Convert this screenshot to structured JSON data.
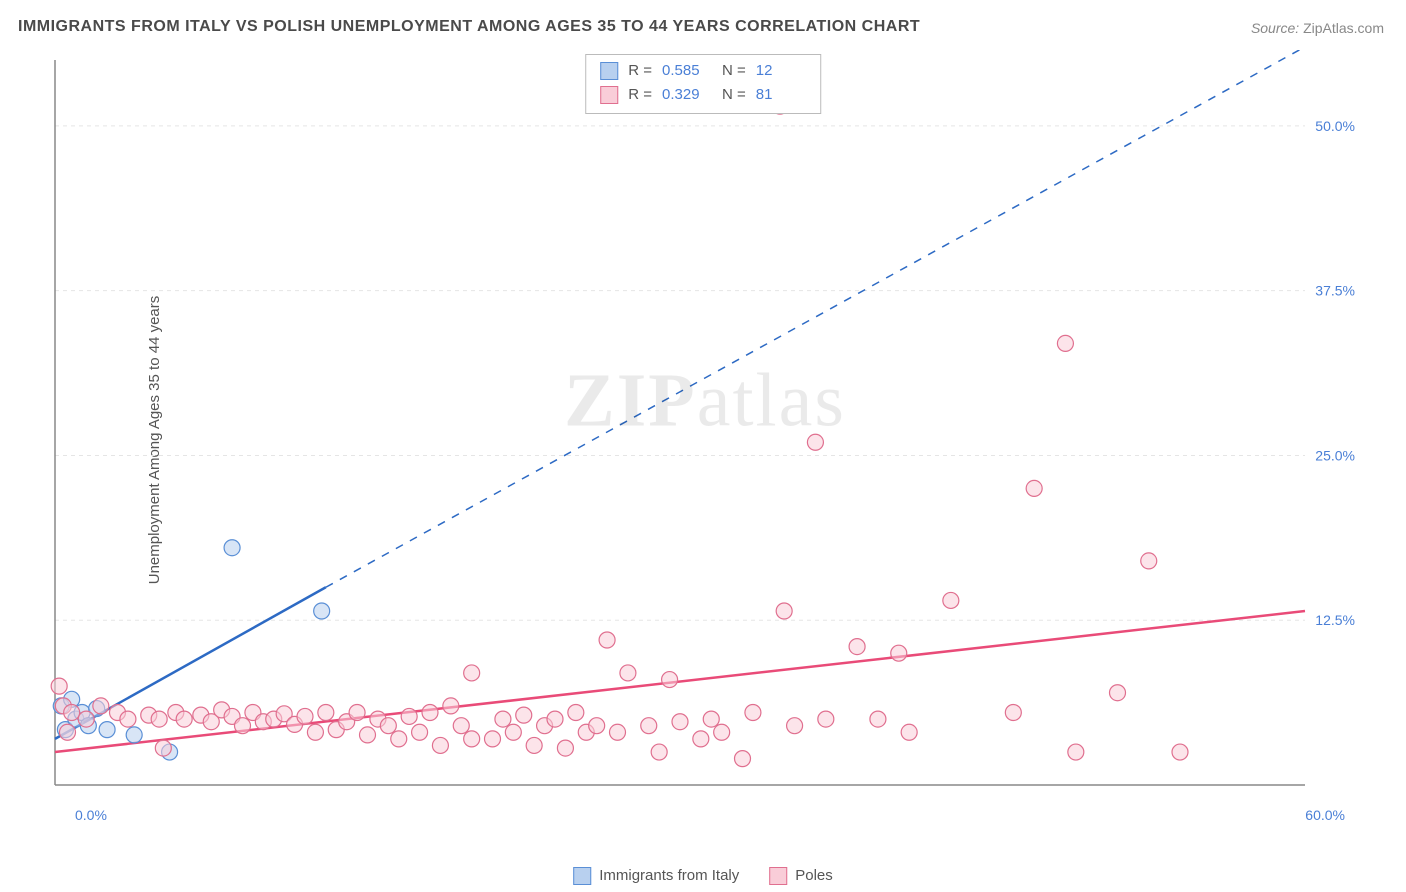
{
  "title": "IMMIGRANTS FROM ITALY VS POLISH UNEMPLOYMENT AMONG AGES 35 TO 44 YEARS CORRELATION CHART",
  "source_label": "Source:",
  "source_value": "ZipAtlas.com",
  "y_axis_label": "Unemployment Among Ages 35 to 44 years",
  "watermark_bold": "ZIP",
  "watermark_rest": "atlas",
  "chart": {
    "type": "scatter",
    "background_color": "#ffffff",
    "grid_color": "#e5e5e5",
    "axis_color": "#888888",
    "xlim": [
      0,
      60
    ],
    "ylim": [
      0,
      55
    ],
    "x_ticks": [
      {
        "v": 0,
        "label": "0.0%"
      },
      {
        "v": 60,
        "label": "60.0%"
      }
    ],
    "y_ticks": [
      {
        "v": 12.5,
        "label": "12.5%"
      },
      {
        "v": 25,
        "label": "25.0%"
      },
      {
        "v": 37.5,
        "label": "37.5%"
      },
      {
        "v": 50,
        "label": "50.0%"
      }
    ],
    "y_grid_values": [
      12.5,
      25,
      37.5,
      50
    ],
    "tick_label_color": "#4a7fd6",
    "series": [
      {
        "name": "Immigrants from Italy",
        "key": "italy",
        "fill": "#b8d0ef",
        "stroke": "#5a8fd6",
        "line_color": "#2d6ac4",
        "marker_radius": 8,
        "R": "0.585",
        "N": "12",
        "trend": {
          "x1": 0,
          "y1": 3.5,
          "x2": 13,
          "y2": 15,
          "dash_to_x": 60,
          "dash_to_y": 56
        },
        "points": [
          {
            "x": 0.3,
            "y": 6.0
          },
          {
            "x": 0.5,
            "y": 4.2
          },
          {
            "x": 0.8,
            "y": 6.5
          },
          {
            "x": 1.0,
            "y": 5.0
          },
          {
            "x": 1.3,
            "y": 5.5
          },
          {
            "x": 1.6,
            "y": 4.5
          },
          {
            "x": 2.0,
            "y": 5.8
          },
          {
            "x": 2.5,
            "y": 4.2
          },
          {
            "x": 3.8,
            "y": 3.8
          },
          {
            "x": 5.5,
            "y": 2.5
          },
          {
            "x": 8.5,
            "y": 18.0
          },
          {
            "x": 12.8,
            "y": 13.2
          }
        ]
      },
      {
        "name": "Poles",
        "key": "poles",
        "fill": "#f9cdd8",
        "stroke": "#e06f8f",
        "line_color": "#e94b78",
        "marker_radius": 8,
        "R": "0.329",
        "N": "81",
        "trend": {
          "x1": 0,
          "y1": 2.5,
          "x2": 60,
          "y2": 13.2
        },
        "points": [
          {
            "x": 0.2,
            "y": 7.5
          },
          {
            "x": 0.4,
            "y": 6.0
          },
          {
            "x": 0.6,
            "y": 4.0
          },
          {
            "x": 0.8,
            "y": 5.5
          },
          {
            "x": 1.5,
            "y": 5.0
          },
          {
            "x": 2.2,
            "y": 6.0
          },
          {
            "x": 3.0,
            "y": 5.5
          },
          {
            "x": 3.5,
            "y": 5.0
          },
          {
            "x": 4.5,
            "y": 5.3
          },
          {
            "x": 5.0,
            "y": 5.0
          },
          {
            "x": 5.2,
            "y": 2.8
          },
          {
            "x": 5.8,
            "y": 5.5
          },
          {
            "x": 6.2,
            "y": 5.0
          },
          {
            "x": 7.0,
            "y": 5.3
          },
          {
            "x": 7.5,
            "y": 4.8
          },
          {
            "x": 8.0,
            "y": 5.7
          },
          {
            "x": 8.5,
            "y": 5.2
          },
          {
            "x": 9.0,
            "y": 4.5
          },
          {
            "x": 9.5,
            "y": 5.5
          },
          {
            "x": 10.0,
            "y": 4.8
          },
          {
            "x": 10.5,
            "y": 5.0
          },
          {
            "x": 11.0,
            "y": 5.4
          },
          {
            "x": 11.5,
            "y": 4.6
          },
          {
            "x": 12.0,
            "y": 5.2
          },
          {
            "x": 12.5,
            "y": 4.0
          },
          {
            "x": 13.0,
            "y": 5.5
          },
          {
            "x": 13.5,
            "y": 4.2
          },
          {
            "x": 14.0,
            "y": 4.8
          },
          {
            "x": 14.5,
            "y": 5.5
          },
          {
            "x": 15.0,
            "y": 3.8
          },
          {
            "x": 15.5,
            "y": 5.0
          },
          {
            "x": 16.0,
            "y": 4.5
          },
          {
            "x": 16.5,
            "y": 3.5
          },
          {
            "x": 17.0,
            "y": 5.2
          },
          {
            "x": 17.5,
            "y": 4.0
          },
          {
            "x": 18.0,
            "y": 5.5
          },
          {
            "x": 18.5,
            "y": 3.0
          },
          {
            "x": 19.0,
            "y": 6.0
          },
          {
            "x": 19.5,
            "y": 4.5
          },
          {
            "x": 20.0,
            "y": 3.5
          },
          {
            "x": 20.0,
            "y": 8.5
          },
          {
            "x": 21.0,
            "y": 3.5
          },
          {
            "x": 21.5,
            "y": 5.0
          },
          {
            "x": 22.0,
            "y": 4.0
          },
          {
            "x": 22.5,
            "y": 5.3
          },
          {
            "x": 23.0,
            "y": 3.0
          },
          {
            "x": 23.5,
            "y": 4.5
          },
          {
            "x": 24.0,
            "y": 5.0
          },
          {
            "x": 24.5,
            "y": 2.8
          },
          {
            "x": 25.0,
            "y": 5.5
          },
          {
            "x": 25.5,
            "y": 4.0
          },
          {
            "x": 26.0,
            "y": 4.5
          },
          {
            "x": 26.5,
            "y": 11.0
          },
          {
            "x": 27.0,
            "y": 4.0
          },
          {
            "x": 27.5,
            "y": 8.5
          },
          {
            "x": 28.5,
            "y": 4.5
          },
          {
            "x": 29.0,
            "y": 2.5
          },
          {
            "x": 29.5,
            "y": 8.0
          },
          {
            "x": 30.0,
            "y": 4.8
          },
          {
            "x": 31.0,
            "y": 3.5
          },
          {
            "x": 31.5,
            "y": 5.0
          },
          {
            "x": 32.0,
            "y": 4.0
          },
          {
            "x": 33.0,
            "y": 2.0
          },
          {
            "x": 33.5,
            "y": 5.5
          },
          {
            "x": 34.8,
            "y": 51.5
          },
          {
            "x": 35.0,
            "y": 13.2
          },
          {
            "x": 35.5,
            "y": 4.5
          },
          {
            "x": 36.5,
            "y": 26.0
          },
          {
            "x": 37.0,
            "y": 5.0
          },
          {
            "x": 38.5,
            "y": 10.5
          },
          {
            "x": 39.5,
            "y": 5.0
          },
          {
            "x": 40.5,
            "y": 10.0
          },
          {
            "x": 41.0,
            "y": 4.0
          },
          {
            "x": 43.0,
            "y": 14.0
          },
          {
            "x": 46.0,
            "y": 5.5
          },
          {
            "x": 47.0,
            "y": 22.5
          },
          {
            "x": 48.5,
            "y": 33.5
          },
          {
            "x": 49.0,
            "y": 2.5
          },
          {
            "x": 51.0,
            "y": 7.0
          },
          {
            "x": 52.5,
            "y": 17.0
          },
          {
            "x": 54.0,
            "y": 2.5
          }
        ]
      }
    ],
    "bottom_legend": [
      {
        "key": "italy",
        "label": "Immigrants from Italy"
      },
      {
        "key": "poles",
        "label": "Poles"
      }
    ]
  }
}
